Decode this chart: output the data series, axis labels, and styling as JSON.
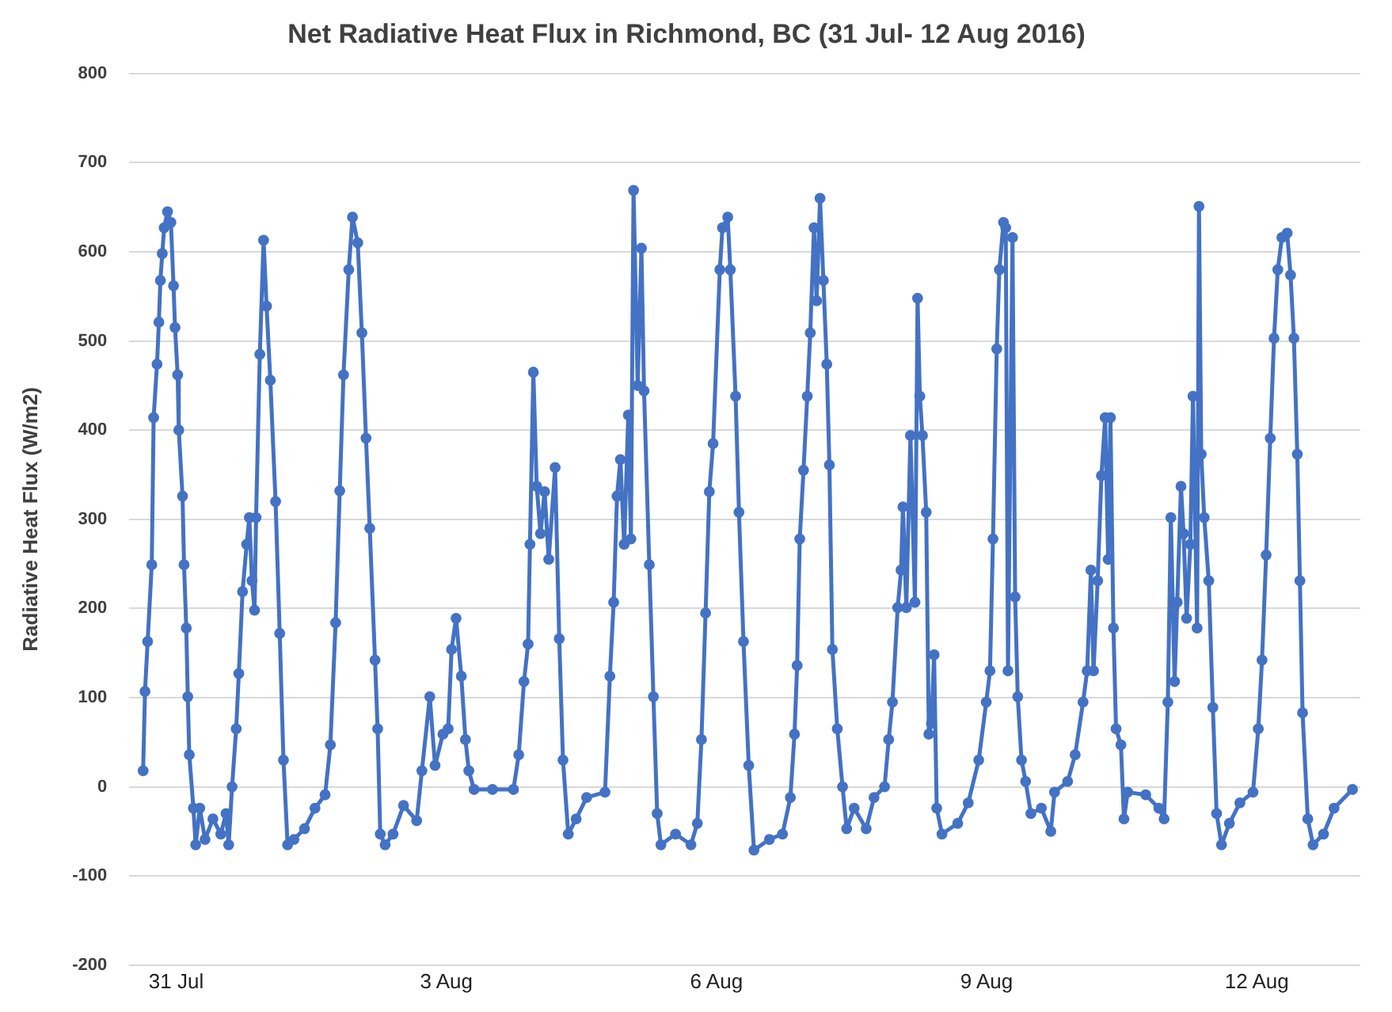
{
  "chart_data": {
    "type": "line",
    "title": "Net Radiative Heat Flux in Richmond, BC (31 Jul- 12 Aug 2016)",
    "ylabel": "Radiative Heat Flux (W/m2)",
    "x": [
      "2016-07-30T15:12",
      "2016-07-30T15:42",
      "2016-07-30T16:24",
      "2016-07-30T17:30",
      "2016-07-30T18:00",
      "2016-07-30T18:54",
      "2016-07-30T19:24",
      "2016-07-30T19:48",
      "2016-07-30T20:18",
      "2016-07-30T20:48",
      "2016-07-30T21:42",
      "2016-07-30T22:36",
      "2016-07-30T23:18",
      "2016-07-30T23:42",
      "2016-07-31T00:24",
      "2016-07-31T00:42",
      "2016-07-31T01:42",
      "2016-07-31T02:06",
      "2016-07-31T02:42",
      "2016-07-31T03:06",
      "2016-07-31T03:30",
      "2016-07-31T04:36",
      "2016-07-31T05:12",
      "2016-07-31T06:18",
      "2016-07-31T07:42",
      "2016-07-31T09:48",
      "2016-07-31T11:54",
      "2016-07-31T13:18",
      "2016-07-31T14:00",
      "2016-07-31T14:54",
      "2016-07-31T16:00",
      "2016-07-31T16:42",
      "2016-07-31T17:42",
      "2016-07-31T18:48",
      "2016-07-31T19:30",
      "2016-07-31T20:12",
      "2016-07-31T20:54",
      "2016-07-31T21:18",
      "2016-07-31T22:18",
      "2016-07-31T23:18",
      "2016-08-01T00:06",
      "2016-08-01T01:06",
      "2016-08-01T02:30",
      "2016-08-01T03:36",
      "2016-08-01T04:36",
      "2016-08-01T05:42",
      "2016-08-01T07:24",
      "2016-08-01T10:12",
      "2016-08-01T13:00",
      "2016-08-01T15:42",
      "2016-08-01T17:06",
      "2016-08-01T18:30",
      "2016-08-01T19:36",
      "2016-08-01T20:36",
      "2016-08-01T22:00",
      "2016-08-01T23:00",
      "2016-08-02T00:24",
      "2016-08-02T01:30",
      "2016-08-02T02:36",
      "2016-08-02T03:36",
      "2016-08-02T05:00",
      "2016-08-02T05:42",
      "2016-08-02T06:24",
      "2016-08-02T07:42",
      "2016-08-02T09:48",
      "2016-08-02T12:36",
      "2016-08-02T16:06",
      "2016-08-02T17:30",
      "2016-08-02T19:36",
      "2016-08-02T21:00",
      "2016-08-02T23:06",
      "2016-08-03T00:30",
      "2016-08-03T01:24",
      "2016-08-03T02:36",
      "2016-08-03T04:00",
      "2016-08-03T05:06",
      "2016-08-03T06:00",
      "2016-08-03T07:24",
      "2016-08-03T12:18",
      "2016-08-03T17:54",
      "2016-08-03T19:18",
      "2016-08-03T20:42",
      "2016-08-03T21:48",
      "2016-08-03T22:18",
      "2016-08-03T23:12",
      "2016-08-04T00:06",
      "2016-08-04T01:06",
      "2016-08-04T02:12",
      "2016-08-04T03:18",
      "2016-08-04T05:00",
      "2016-08-04T06:06",
      "2016-08-04T07:06",
      "2016-08-04T08:30",
      "2016-08-04T10:36",
      "2016-08-04T13:24",
      "2016-08-04T18:18",
      "2016-08-04T19:36",
      "2016-08-04T20:36",
      "2016-08-04T21:30",
      "2016-08-04T22:24",
      "2016-08-04T23:24",
      "2016-08-05T00:30",
      "2016-08-05T01:12",
      "2016-08-05T01:54",
      "2016-08-05T03:00",
      "2016-08-05T04:00",
      "2016-08-05T04:42",
      "2016-08-05T06:06",
      "2016-08-05T07:12",
      "2016-08-05T08:12",
      "2016-08-05T09:12",
      "2016-08-05T13:06",
      "2016-08-05T17:12",
      "2016-08-05T18:54",
      "2016-08-05T20:00",
      "2016-08-05T21:06",
      "2016-08-05T22:06",
      "2016-08-05T23:06",
      "2016-08-06T00:54",
      "2016-08-06T01:36",
      "2016-08-06T03:00",
      "2016-08-06T03:42",
      "2016-08-06T05:06",
      "2016-08-06T06:00",
      "2016-08-06T07:12",
      "2016-08-06T08:36",
      "2016-08-06T10:00",
      "2016-08-06T14:06",
      "2016-08-06T17:36",
      "2016-08-06T19:42",
      "2016-08-06T20:48",
      "2016-08-06T21:30",
      "2016-08-06T22:12",
      "2016-08-06T23:12",
      "2016-08-07T00:12",
      "2016-08-07T01:00",
      "2016-08-07T02:00",
      "2016-08-07T02:42",
      "2016-08-07T03:36",
      "2016-08-07T04:30",
      "2016-08-07T05:24",
      "2016-08-07T06:06",
      "2016-08-07T06:54",
      "2016-08-07T08:12",
      "2016-08-07T09:36",
      "2016-08-07T10:42",
      "2016-08-07T12:42",
      "2016-08-07T15:54",
      "2016-08-07T18:00",
      "2016-08-07T20:48",
      "2016-08-07T21:54",
      "2016-08-07T22:54",
      "2016-08-08T00:18",
      "2016-08-08T01:12",
      "2016-08-08T01:42",
      "2016-08-08T02:36",
      "2016-08-08T03:42",
      "2016-08-08T04:54",
      "2016-08-08T05:36",
      "2016-08-08T06:12",
      "2016-08-08T06:54",
      "2016-08-08T07:54",
      "2016-08-08T08:36",
      "2016-08-08T09:18",
      "2016-08-08T10:00",
      "2016-08-08T10:42",
      "2016-08-08T12:06",
      "2016-08-08T16:18",
      "2016-08-08T19:06",
      "2016-08-08T21:54",
      "2016-08-08T23:54",
      "2016-08-09T00:54",
      "2016-08-09T01:42",
      "2016-08-09T02:42",
      "2016-08-09T03:24",
      "2016-08-09T04:30",
      "2016-08-09T05:06",
      "2016-08-09T05:42",
      "2016-08-09T06:54",
      "2016-08-09T07:36",
      "2016-08-09T08:18",
      "2016-08-09T09:18",
      "2016-08-09T10:24",
      "2016-08-09T11:48",
      "2016-08-09T14:36",
      "2016-08-09T17:06",
      "2016-08-09T18:06",
      "2016-08-09T21:36",
      "2016-08-09T23:36",
      "2016-08-10T01:42",
      "2016-08-10T02:48",
      "2016-08-10T03:48",
      "2016-08-10T04:30",
      "2016-08-10T05:36",
      "2016-08-10T06:36",
      "2016-08-10T07:36",
      "2016-08-10T08:24",
      "2016-08-10T09:00",
      "2016-08-10T09:48",
      "2016-08-10T10:30",
      "2016-08-10T11:48",
      "2016-08-10T12:36",
      "2016-08-10T13:36",
      "2016-08-10T18:24",
      "2016-08-10T21:54",
      "2016-08-10T23:18",
      "2016-08-11T00:18",
      "2016-08-11T01:06",
      "2016-08-11T02:06",
      "2016-08-11T02:48",
      "2016-08-11T03:48",
      "2016-08-11T04:30",
      "2016-08-11T05:18",
      "2016-08-11T06:18",
      "2016-08-11T07:00",
      "2016-08-11T08:06",
      "2016-08-11T08:36",
      "2016-08-11T09:12",
      "2016-08-11T10:00",
      "2016-08-11T11:12",
      "2016-08-11T12:18",
      "2016-08-11T13:18",
      "2016-08-11T14:36",
      "2016-08-11T16:42",
      "2016-08-11T19:30",
      "2016-08-11T23:00",
      "2016-08-12T00:24",
      "2016-08-12T01:24",
      "2016-08-12T02:30",
      "2016-08-12T03:36",
      "2016-08-12T04:36",
      "2016-08-12T05:36",
      "2016-08-12T06:42",
      "2016-08-12T08:06",
      "2016-08-12T09:00",
      "2016-08-12T09:54",
      "2016-08-12T10:48",
      "2016-08-12T11:30",
      "2016-08-12T12:12",
      "2016-08-12T13:36",
      "2016-08-12T15:00",
      "2016-08-12T17:48",
      "2016-08-12T20:36",
      "2016-08-13T01:30"
    ],
    "series": [
      {
        "color": "#4472c4",
        "values": [
          18,
          107,
          163,
          249,
          414,
          474,
          521,
          568,
          598,
          627,
          645,
          633,
          562,
          515,
          462,
          400,
          326,
          249,
          178,
          101,
          36,
          -24,
          -65,
          -24,
          -59,
          -36,
          -53,
          -30,
          -65,
          0,
          65,
          127,
          219,
          272,
          302,
          231,
          198,
          302,
          485,
          613,
          539,
          456,
          320,
          172,
          30,
          -65,
          -59,
          -47,
          -24,
          -9,
          47,
          184,
          332,
          462,
          580,
          639,
          610,
          509,
          391,
          290,
          142,
          65,
          -53,
          -65,
          -53,
          -21,
          -38,
          18,
          101,
          24,
          59,
          65,
          154,
          189,
          124,
          53,
          18,
          -3,
          -3,
          -3,
          36,
          118,
          160,
          272,
          465,
          337,
          284,
          331,
          255,
          358,
          166,
          30,
          -53,
          -36,
          -12,
          -6,
          124,
          207,
          326,
          367,
          272,
          417,
          278,
          669,
          450,
          604,
          444,
          249,
          101,
          -30,
          -65,
          -53,
          -65,
          -41,
          53,
          195,
          331,
          385,
          580,
          627,
          639,
          580,
          438,
          308,
          163,
          24,
          -71,
          -59,
          -53,
          -12,
          59,
          136,
          278,
          355,
          438,
          509,
          627,
          545,
          660,
          568,
          474,
          361,
          154,
          65,
          0,
          -47,
          -24,
          -47,
          -12,
          0,
          53,
          95,
          201,
          243,
          314,
          201,
          394,
          207,
          548,
          438,
          394,
          308,
          59,
          71,
          148,
          -24,
          -53,
          -41,
          -18,
          30,
          95,
          130,
          278,
          491,
          580,
          633,
          627,
          130,
          616,
          213,
          101,
          30,
          6,
          -30,
          -24,
          -50,
          -6,
          6,
          36,
          95,
          130,
          243,
          130,
          231,
          349,
          414,
          255,
          414,
          178,
          65,
          47,
          -36,
          -6,
          -9,
          -24,
          -36,
          95,
          302,
          118,
          207,
          337,
          284,
          189,
          272,
          438,
          178,
          651,
          373,
          302,
          231,
          89,
          -30,
          -65,
          -41,
          -18,
          -6,
          65,
          142,
          260,
          391,
          503,
          580,
          616,
          621,
          574,
          503,
          373,
          231,
          83,
          -36,
          -65,
          -53,
          -24,
          -3
        ]
      }
    ],
    "xlim": [
      "2016-07-30T11:30",
      "2016-08-13T03:36"
    ],
    "xticks": [
      {
        "value": "2016-07-31",
        "label": "31 Jul"
      },
      {
        "value": "2016-08-03",
        "label": "3 Aug"
      },
      {
        "value": "2016-08-06",
        "label": "6 Aug"
      },
      {
        "value": "2016-08-09",
        "label": "9 Aug"
      },
      {
        "value": "2016-08-12",
        "label": "12 Aug"
      }
    ],
    "ylim": [
      -200,
      800
    ],
    "yticks": [
      -200,
      -100,
      0,
      100,
      200,
      300,
      400,
      500,
      600,
      700,
      800
    ],
    "grid": "y",
    "legend": false,
    "marker": "circle",
    "line_style": "solid"
  }
}
